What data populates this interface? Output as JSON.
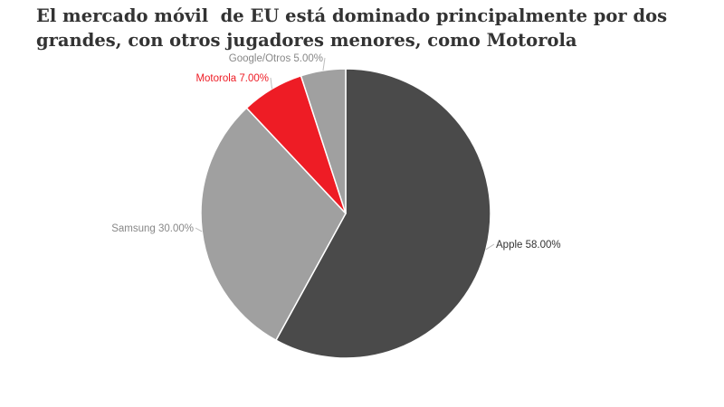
{
  "colors": {
    "apple": "#4a4a4a",
    "samsung": "#a0a0a0",
    "motorola": "#ee1c25",
    "google": "#a0a0a0",
    "label_gray": "#888888",
    "label_dark": "#333333",
    "label_red": "#ee1c25"
  },
  "chart_data": {
    "type": "pie",
    "title": "El mercado móvil  de EU está dominado principalmente por dos grandes, con otros jugadores menores, como Motorola",
    "start": "top, clockwise",
    "slices": [
      {
        "key": "apple",
        "name": "Apple",
        "value": 58.0,
        "label": "Apple 58.00%",
        "color": "#4a4a4a",
        "label_color": "#333333"
      },
      {
        "key": "samsung",
        "name": "Samsung",
        "value": 30.0,
        "label": "Samsung 30.00%",
        "color": "#a0a0a0",
        "label_color": "#888888"
      },
      {
        "key": "motorola",
        "name": "Motorola",
        "value": 7.0,
        "label": "Motorola 7.00%",
        "color": "#ee1c25",
        "label_color": "#ee1c25"
      },
      {
        "key": "google",
        "name": "Google/Otros",
        "value": 5.0,
        "label": "Google/Otros 5.00%",
        "color": "#a0a0a0",
        "label_color": "#888888"
      }
    ]
  }
}
